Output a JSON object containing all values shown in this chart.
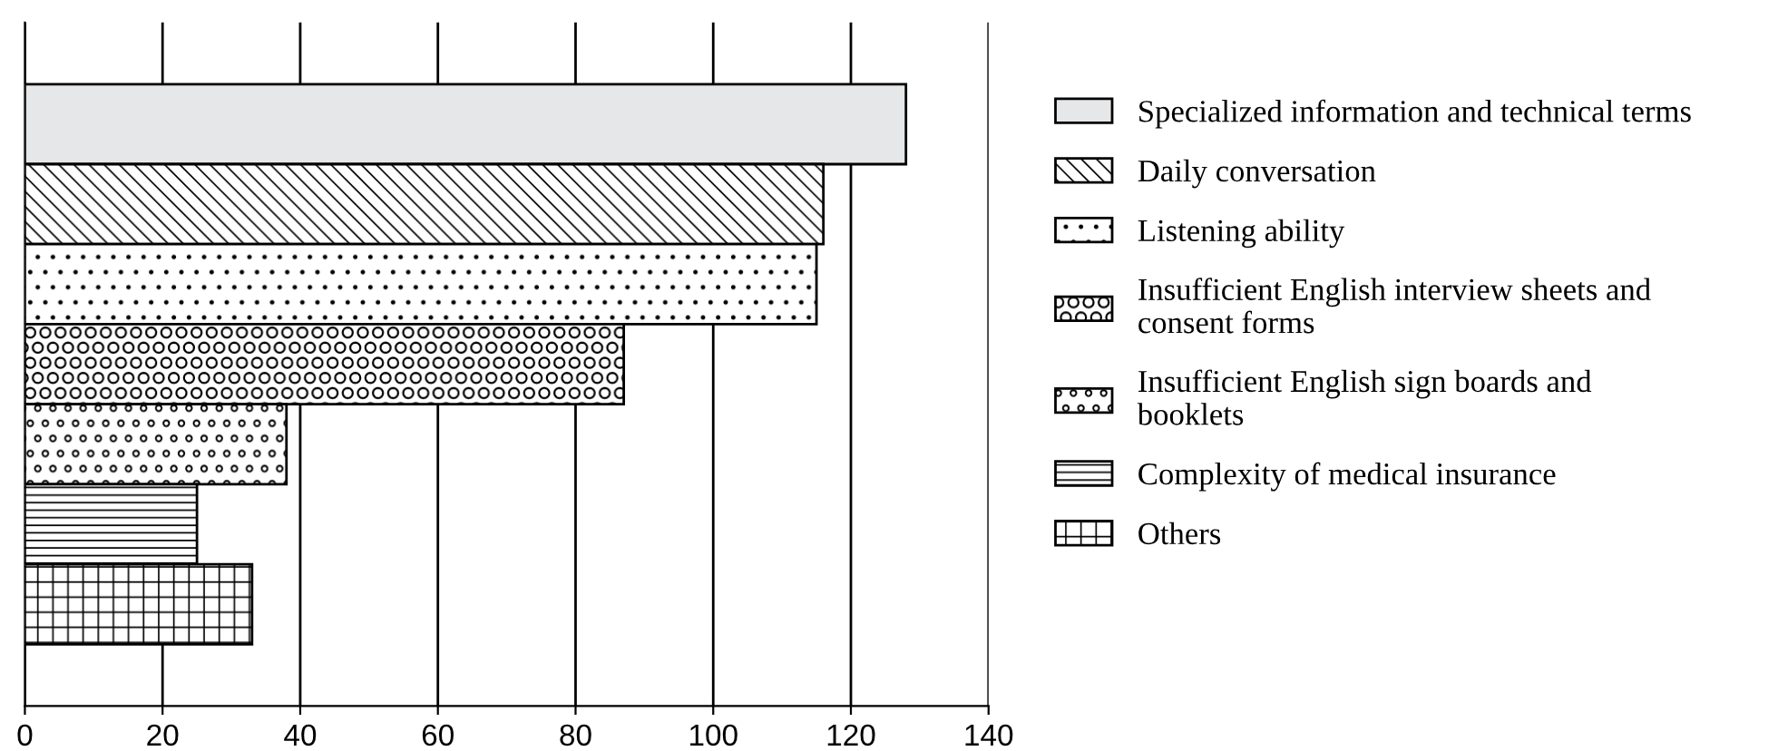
{
  "chart_data": {
    "type": "bar",
    "orientation": "horizontal",
    "categories": [
      null,
      null,
      null,
      null,
      null,
      null,
      null
    ],
    "series": [
      {
        "name": "Specialized information and technical terms",
        "color": "#e6e7e8",
        "values": [
          128,
          null,
          null,
          null,
          null,
          null,
          null
        ]
      },
      {
        "name": "Daily conversation",
        "color": "#000000",
        "values": [
          null,
          116,
          null,
          null,
          null,
          null,
          null
        ]
      },
      {
        "name": "Listening ability",
        "color": "#000000",
        "values": [
          null,
          null,
          115,
          null,
          null,
          null,
          null
        ]
      },
      {
        "name": "Insufficient English interview sheets and\nconsent forms",
        "color": "#000000",
        "values": [
          null,
          null,
          null,
          87,
          null,
          null,
          null
        ]
      },
      {
        "name": "Insufficient English sign boards and\nbooklets",
        "color": "#000000",
        "values": [
          null,
          null,
          null,
          null,
          38,
          null,
          null
        ]
      },
      {
        "name": "Complexity of medical insurance",
        "color": "#000000",
        "values": [
          null,
          null,
          null,
          null,
          null,
          25,
          null
        ]
      },
      {
        "name": "Others",
        "color": "#000000",
        "values": [
          null,
          null,
          null,
          null,
          null,
          null,
          33
        ]
      }
    ],
    "stacked": true,
    "xlim": [
      0,
      140
    ],
    "xticks": [
      0,
      20,
      40,
      60,
      80,
      100,
      120,
      140
    ],
    "grid": "x",
    "legend": "right",
    "tick_labels": "x"
  }
}
